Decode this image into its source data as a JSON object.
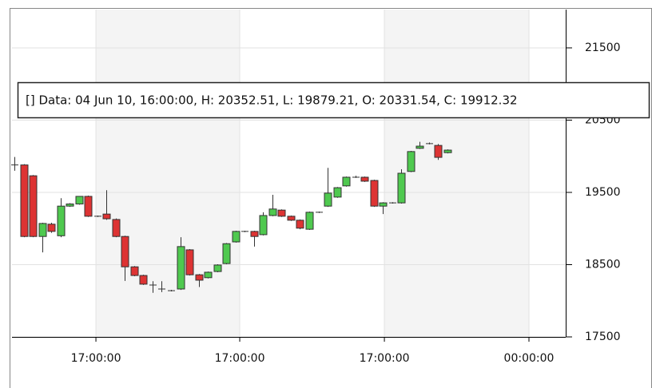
{
  "chart_data": {
    "type": "candlestick",
    "annotation": "[] Data: 04 Jun 10, 16:00:00, H: 20352.51, L: 19879.21, O: 20331.54, C: 19912.32",
    "x": [
      0,
      1,
      2,
      3,
      4,
      5,
      6,
      7,
      8,
      9,
      10,
      11,
      12,
      13,
      14,
      15,
      16,
      17,
      18,
      19,
      20,
      21,
      22,
      23,
      24,
      25,
      26,
      27,
      28,
      29,
      30,
      31,
      32,
      33,
      34,
      35,
      36,
      37,
      38,
      39,
      40,
      41,
      42,
      43,
      44,
      45,
      46,
      47
    ],
    "open": [
      19880,
      19880,
      19730,
      18890,
      19060,
      18900,
      19310,
      19340,
      19445,
      19170,
      19200,
      19125,
      18890,
      18470,
      18350,
      18218,
      18163,
      18140,
      18163,
      18705,
      18360,
      18320,
      18405,
      18515,
      18815,
      18960,
      18960,
      18915,
      19180,
      19255,
      19170,
      19115,
      18990,
      19225,
      19310,
      19435,
      19590,
      19710,
      19710,
      19665,
      19310,
      19355,
      19355,
      19790,
      20110,
      20175,
      20150,
      20050
    ],
    "high": [
      19990,
      19890,
      19740,
      19080,
      19080,
      19420,
      19350,
      19450,
      19455,
      19180,
      19530,
      19140,
      18900,
      18480,
      18360,
      18270,
      18270,
      18150,
      18880,
      18715,
      18370,
      18405,
      18505,
      18800,
      18970,
      18970,
      18970,
      19225,
      19467,
      19265,
      19180,
      19125,
      19235,
      19235,
      19840,
      19575,
      19720,
      19730,
      19720,
      19675,
      19365,
      19365,
      19820,
      20075,
      20200,
      20190,
      20170,
      20095
    ],
    "low": [
      19800,
      18880,
      18880,
      18670,
      18940,
      18880,
      19300,
      19330,
      19160,
      19160,
      19120,
      18880,
      18275,
      18340,
      18220,
      18110,
      18120,
      18130,
      18150,
      18350,
      18190,
      18310,
      18395,
      18505,
      18805,
      18950,
      18750,
      18905,
      19170,
      19160,
      19105,
      18990,
      18980,
      19215,
      19300,
      19425,
      19580,
      19700,
      19645,
      19300,
      19200,
      19345,
      19345,
      19780,
      20100,
      20165,
      19950,
      20040
    ],
    "close": [
      19880,
      18890,
      18890,
      19070,
      18960,
      19310,
      19340,
      19445,
      19170,
      19170,
      19135,
      18890,
      18470,
      18350,
      18230,
      18218,
      18163,
      18140,
      18750,
      18360,
      18285,
      18395,
      18495,
      18790,
      18960,
      18960,
      18890,
      19180,
      19270,
      19170,
      19115,
      19005,
      19225,
      19225,
      19490,
      19565,
      19710,
      19710,
      19655,
      19310,
      19355,
      19355,
      19765,
      20065,
      20140,
      20175,
      19985,
      20085
    ],
    "up_color": "#4fc94f",
    "down_color": "#dd3333",
    "xlim": [
      -0.26,
      59.84
    ],
    "xticks": [
      {
        "value": 8.85,
        "label": "17:00:00"
      },
      {
        "value": 24.46,
        "label": "17:00:00"
      },
      {
        "value": 40.16,
        "label": "17:00:00"
      },
      {
        "value": 55.85,
        "label": "00:00:00"
      }
    ],
    "ylim": [
      17500,
      22030
    ],
    "yticks": [
      17500,
      18500,
      19500,
      20500,
      21500
    ],
    "grid": true
  }
}
